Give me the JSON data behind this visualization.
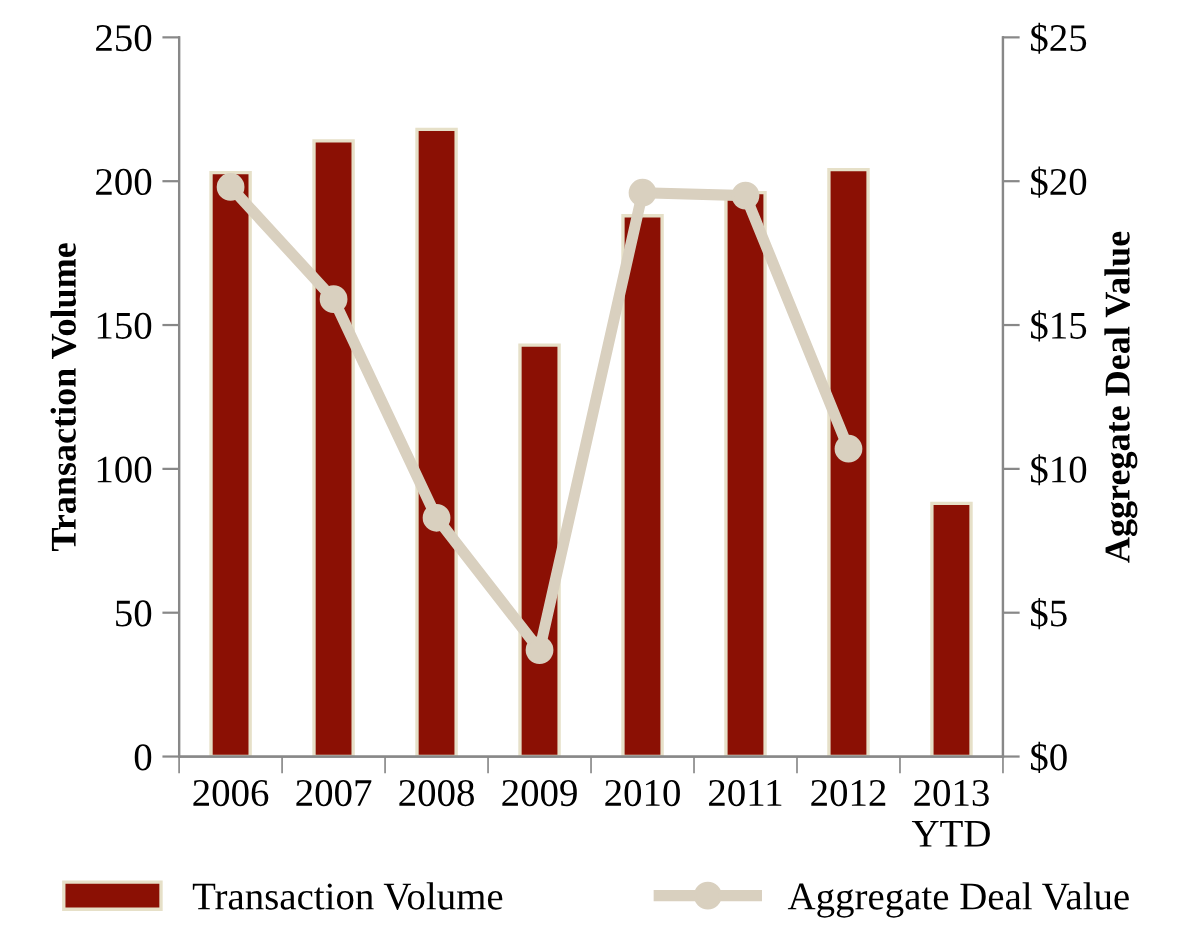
{
  "chart_data": {
    "type": "bar",
    "categories": [
      "2006",
      "2007",
      "2008",
      "2009",
      "2010",
      "2011",
      "2012",
      "2013\nYTD"
    ],
    "ylabel": "Transaction Volume",
    "y2label": "Aggregate Deal Value",
    "ylim": [
      0,
      250
    ],
    "yticks": [
      0,
      50,
      100,
      150,
      200,
      250
    ],
    "y2lim": [
      0,
      25
    ],
    "y2ticks": [
      {
        "value": 0,
        "label": "$0"
      },
      {
        "value": 5,
        "label": "$5"
      },
      {
        "value": 10,
        "label": "$10"
      },
      {
        "value": 15,
        "label": "$15"
      },
      {
        "value": 20,
        "label": "$20"
      },
      {
        "value": 25,
        "label": "$25"
      }
    ],
    "series": [
      {
        "name": "Transaction Volume",
        "color": "#8b1004",
        "values": [
          203,
          214,
          218,
          143,
          188,
          196,
          204,
          88
        ]
      },
      {
        "name": "Aggregate Deal Value",
        "type": "line",
        "axis": "y2",
        "color": "#d9d0bf",
        "marker": "circle",
        "values": [
          19.8,
          15.9,
          8.3,
          3.7,
          19.6,
          19.5,
          10.7,
          null
        ]
      }
    ],
    "grid": false,
    "legend": "bottom"
  }
}
